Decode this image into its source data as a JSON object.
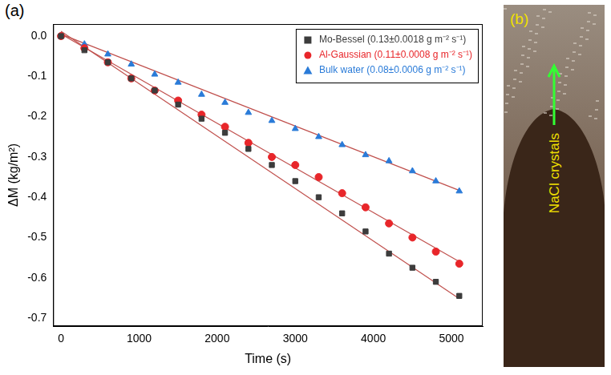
{
  "chart_data": {
    "type": "scatter",
    "panel_label": "(a)",
    "x_label": "Time (s)",
    "y_label": "ΔM (kg/m²)",
    "x": [
      0,
      300,
      600,
      900,
      1200,
      1500,
      1800,
      2100,
      2400,
      2700,
      3000,
      3300,
      3600,
      3900,
      4200,
      4500,
      4800,
      5100
    ],
    "series": [
      {
        "name": "Mo-Bessel (0.13±0.0018 g m⁻² s⁻¹)",
        "color": "#3c3c3c",
        "marker": "square",
        "values": [
          0,
          -0.035,
          -0.065,
          -0.105,
          -0.135,
          -0.17,
          -0.205,
          -0.24,
          -0.28,
          -0.32,
          -0.36,
          -0.4,
          -0.44,
          -0.485,
          -0.54,
          -0.575,
          -0.61,
          -0.645
        ]
      },
      {
        "name": "Al-Gaussian (0.11±0.0008 g m⁻² s⁻¹)",
        "color": "#e8262a",
        "marker": "circle",
        "values": [
          0,
          -0.03,
          -0.065,
          -0.105,
          -0.135,
          -0.16,
          -0.195,
          -0.225,
          -0.265,
          -0.3,
          -0.32,
          -0.35,
          -0.39,
          -0.425,
          -0.465,
          -0.5,
          -0.535,
          -0.565
        ]
      },
      {
        "name": "Bulk water (0.08±0.0006 g m⁻² s⁻¹)",
        "color": "#2a7bd8",
        "marker": "triangle",
        "values": [
          0,
          -0.02,
          -0.045,
          -0.07,
          -0.095,
          -0.115,
          -0.145,
          -0.165,
          -0.19,
          -0.21,
          -0.23,
          -0.25,
          -0.27,
          -0.295,
          -0.31,
          -0.335,
          -0.36,
          -0.385
        ]
      }
    ],
    "fits": [
      {
        "color": "#c0504d",
        "line_style": "solid",
        "x": [
          0,
          5100
        ],
        "values": [
          0.012,
          -0.652
        ]
      },
      {
        "color": "#c0504d",
        "line_style": "solid",
        "x": [
          0,
          5100
        ],
        "values": [
          0.005,
          -0.56
        ]
      },
      {
        "color": "#c0504d",
        "line_style": "solid",
        "x": [
          0,
          5100
        ],
        "values": [
          0.005,
          -0.383
        ]
      }
    ],
    "xlim": [
      -100,
      5400
    ],
    "xticks": [
      0,
      1000,
      2000,
      3000,
      4000,
      5000
    ],
    "ylim": [
      -0.72,
      0.03
    ],
    "yticks": [
      -0.7,
      -0.6,
      -0.5,
      -0.4,
      -0.3,
      -0.2,
      -0.1,
      {
        "value": 0,
        "label": "0.0"
      }
    ],
    "grid": false,
    "legend": "upper right"
  },
  "image": {
    "panel_label": "(b)",
    "annotation": "NaCl crystals"
  }
}
